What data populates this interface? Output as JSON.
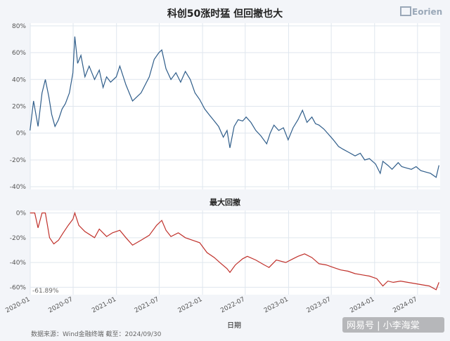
{
  "chart_data": [
    {
      "type": "line",
      "title": "科创50涨时猛 但回撤也大",
      "xlabel": "",
      "ylabel": "",
      "ylim": [
        -0.42,
        0.82
      ],
      "yticks": [
        0.8,
        0.6,
        0.4,
        0.2,
        0,
        -0.2,
        -0.4
      ],
      "ytick_labels": [
        "80%",
        "60%",
        "40%",
        "20%",
        "0%",
        "-20%",
        "-40%"
      ],
      "grid": true,
      "color": "#2f5d8a",
      "series": [
        {
          "x": [
            "2019-12-31",
            "2020-01-15",
            "2020-02-03",
            "2020-02-20",
            "2020-03-05",
            "2020-03-20",
            "2020-04-01",
            "2020-04-15",
            "2020-04-30",
            "2020-05-15",
            "2020-05-29",
            "2020-06-15",
            "2020-06-30",
            "2020-07-08",
            "2020-07-20",
            "2020-08-03",
            "2020-08-20",
            "2020-09-07",
            "2020-09-30",
            "2020-10-20",
            "2020-11-05",
            "2020-11-20",
            "2020-12-07",
            "2020-12-31",
            "2021-01-15",
            "2021-02-10",
            "2021-03-10",
            "2021-04-15",
            "2021-05-20",
            "2021-06-10",
            "2021-06-30",
            "2021-07-12",
            "2021-07-30",
            "2021-08-20",
            "2021-09-10",
            "2021-09-30",
            "2021-10-20",
            "2021-11-10",
            "2021-11-30",
            "2021-12-20",
            "2022-01-10",
            "2022-01-28",
            "2022-02-20",
            "2022-03-10",
            "2022-03-30",
            "2022-04-15",
            "2022-04-27",
            "2022-05-15",
            "2022-06-01",
            "2022-06-20",
            "2022-07-05",
            "2022-07-25",
            "2022-08-15",
            "2022-09-05",
            "2022-09-30",
            "2022-10-15",
            "2022-10-31",
            "2022-11-20",
            "2022-12-10",
            "2022-12-30",
            "2023-01-20",
            "2023-02-10",
            "2023-03-01",
            "2023-03-20",
            "2023-04-10",
            "2023-04-25",
            "2023-05-10",
            "2023-05-31",
            "2023-06-20",
            "2023-07-10",
            "2023-08-01",
            "2023-08-20",
            "2023-09-10",
            "2023-10-10",
            "2023-11-01",
            "2023-11-20",
            "2023-12-10",
            "2024-01-05",
            "2024-01-25",
            "2024-02-05",
            "2024-02-26",
            "2024-03-15",
            "2024-04-10",
            "2024-04-25",
            "2024-05-15",
            "2024-06-05",
            "2024-06-25",
            "2024-07-15",
            "2024-08-05",
            "2024-08-25",
            "2024-09-18",
            "2024-09-30"
          ],
          "y": [
            0.02,
            0.24,
            0.05,
            0.3,
            0.4,
            0.27,
            0.14,
            0.05,
            0.1,
            0.18,
            0.22,
            0.3,
            0.45,
            0.72,
            0.52,
            0.58,
            0.42,
            0.5,
            0.4,
            0.47,
            0.34,
            0.42,
            0.38,
            0.42,
            0.5,
            0.36,
            0.24,
            0.3,
            0.42,
            0.55,
            0.6,
            0.62,
            0.48,
            0.4,
            0.45,
            0.38,
            0.46,
            0.4,
            0.3,
            0.25,
            0.18,
            0.14,
            0.09,
            0.05,
            -0.03,
            0.02,
            -0.11,
            0.05,
            0.1,
            0.09,
            0.12,
            0.08,
            0.02,
            -0.02,
            -0.08,
            0.0,
            0.06,
            0.02,
            0.04,
            -0.05,
            0.04,
            0.1,
            0.17,
            0.08,
            0.12,
            0.07,
            0.06,
            0.03,
            -0.01,
            -0.05,
            -0.1,
            -0.12,
            -0.14,
            -0.17,
            -0.15,
            -0.2,
            -0.19,
            -0.23,
            -0.3,
            -0.21,
            -0.24,
            -0.27,
            -0.22,
            -0.25,
            -0.26,
            -0.27,
            -0.25,
            -0.28,
            -0.29,
            -0.3,
            -0.33,
            -0.24
          ]
        }
      ]
    },
    {
      "type": "area",
      "title": "最大回撤",
      "xlabel": "日期",
      "ylabel": "",
      "ylim": [
        -0.66,
        0.02
      ],
      "yticks": [
        0,
        -0.2,
        -0.4,
        -0.6
      ],
      "ytick_labels": [
        "0%",
        "-20%",
        "-40%",
        "-60%"
      ],
      "x_range": [
        "2020-01-01",
        "2024-10-05"
      ],
      "xtick_labels": [
        "2020-01",
        "2020-07",
        "2021-01",
        "2021-07",
        "2022-01",
        "2022-07",
        "2023-01",
        "2023-07",
        "2024-01",
        "2024-07"
      ],
      "grid": true,
      "color": "#c0312b",
      "annotation": "-61.89%",
      "series": [
        {
          "x": [
            "2019-12-31",
            "2020-01-20",
            "2020-02-03",
            "2020-02-20",
            "2020-03-05",
            "2020-03-23",
            "2020-04-10",
            "2020-04-30",
            "2020-05-20",
            "2020-06-10",
            "2020-06-30",
            "2020-07-08",
            "2020-07-25",
            "2020-08-20",
            "2020-09-30",
            "2020-10-20",
            "2020-11-20",
            "2020-12-15",
            "2021-01-15",
            "2021-02-10",
            "2021-03-10",
            "2021-04-15",
            "2021-05-20",
            "2021-06-20",
            "2021-07-12",
            "2021-07-30",
            "2021-08-20",
            "2021-09-20",
            "2021-10-20",
            "2021-11-20",
            "2021-12-20",
            "2022-01-20",
            "2022-02-20",
            "2022-03-15",
            "2022-04-15",
            "2022-04-27",
            "2022-05-20",
            "2022-06-20",
            "2022-07-10",
            "2022-08-15",
            "2022-09-20",
            "2022-10-10",
            "2022-11-10",
            "2022-12-20",
            "2023-01-20",
            "2023-02-10",
            "2023-03-10",
            "2023-04-10",
            "2023-05-10",
            "2023-06-10",
            "2023-07-10",
            "2023-08-10",
            "2023-09-10",
            "2023-10-10",
            "2023-11-10",
            "2023-12-10",
            "2024-01-10",
            "2024-02-05",
            "2024-02-26",
            "2024-03-20",
            "2024-04-20",
            "2024-05-20",
            "2024-06-20",
            "2024-07-20",
            "2024-08-20",
            "2024-09-18",
            "2024-09-30"
          ],
          "y": [
            0,
            0,
            -0.12,
            0,
            0,
            -0.2,
            -0.25,
            -0.22,
            -0.16,
            -0.1,
            -0.05,
            0,
            -0.1,
            -0.15,
            -0.2,
            -0.13,
            -0.19,
            -0.16,
            -0.14,
            -0.2,
            -0.26,
            -0.22,
            -0.18,
            -0.1,
            -0.06,
            -0.14,
            -0.19,
            -0.16,
            -0.2,
            -0.22,
            -0.24,
            -0.32,
            -0.36,
            -0.4,
            -0.45,
            -0.48,
            -0.42,
            -0.37,
            -0.35,
            -0.38,
            -0.42,
            -0.44,
            -0.38,
            -0.4,
            -0.37,
            -0.35,
            -0.33,
            -0.36,
            -0.41,
            -0.42,
            -0.44,
            -0.46,
            -0.47,
            -0.49,
            -0.5,
            -0.51,
            -0.53,
            -0.59,
            -0.55,
            -0.56,
            -0.55,
            -0.56,
            -0.57,
            -0.58,
            -0.59,
            -0.62,
            -0.56
          ]
        }
      ]
    }
  ],
  "footer": {
    "source": "数据来源：Wind金融终端 截至：2024/09/30"
  },
  "watermark": {
    "text": "网易号 | 小李海棠"
  },
  "logo": {
    "text": "Eorien"
  }
}
